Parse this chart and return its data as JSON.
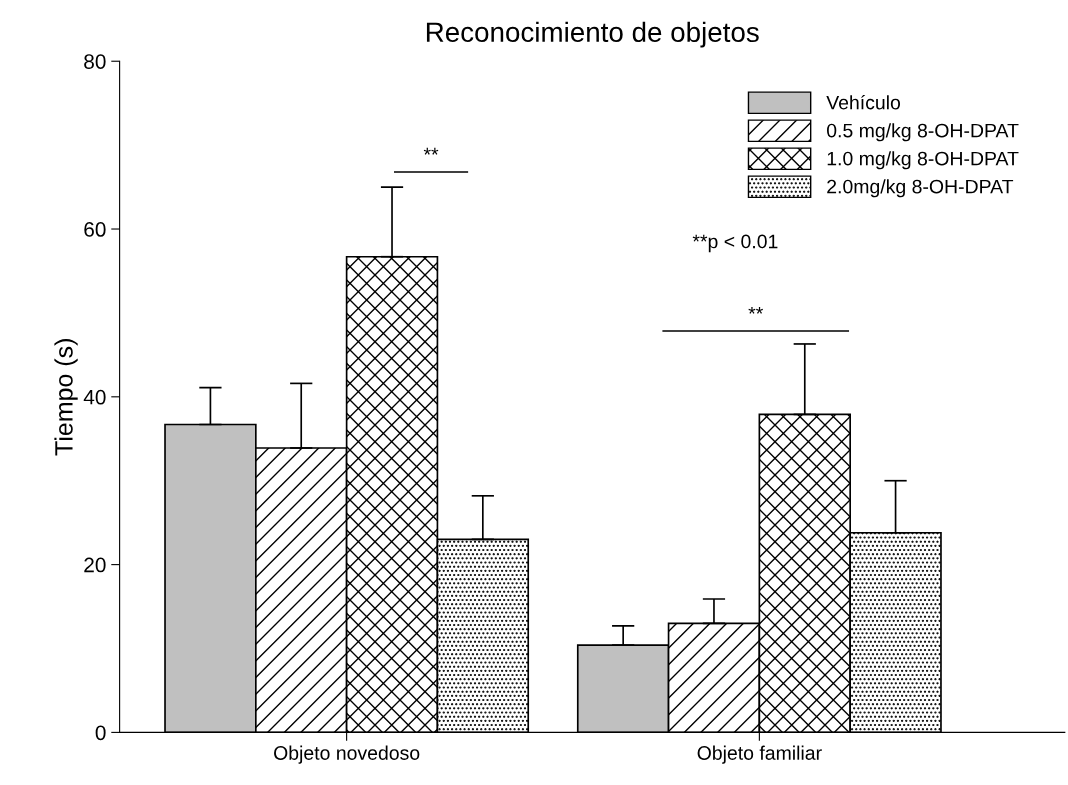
{
  "chart_data": {
    "type": "bar",
    "title": "Reconocimiento de objetos",
    "ylabel": "Tiempo (s)",
    "categories": [
      "Objeto novedoso",
      "Objeto familiar"
    ],
    "series": [
      {
        "name": "Vehículo",
        "color": "#c0c0c0",
        "values": [
          36.7,
          10.4
        ],
        "errors": [
          [
            36.7,
            41.1
          ],
          [
            10.4,
            12.7
          ]
        ]
      },
      {
        "name": "0.5 mg/kg 8-OH-DPAT",
        "color": "#000000",
        "values": [
          33.9,
          13.0
        ],
        "errors": [
          [
            33.9,
            41.6
          ],
          [
            13.0,
            15.9
          ]
        ]
      },
      {
        "name": "1.0 mg/kg 8-OH-DPAT",
        "color": "#000000",
        "values": [
          56.7,
          37.9
        ],
        "errors": [
          [
            56.7,
            65.0
          ],
          [
            37.9,
            46.3
          ]
        ]
      },
      {
        "name": "2.0mg/kg 8-OH-DPAT",
        "color": "#000000",
        "values": [
          23.0,
          23.8
        ],
        "errors": [
          [
            23.0,
            28.2
          ],
          [
            23.8,
            30.0
          ]
        ]
      }
    ],
    "ylim": [
      0,
      80
    ],
    "yticks": [
      0,
      20,
      40,
      60,
      80
    ],
    "grid": false,
    "legend": "top right",
    "annotations": [
      "**",
      "**",
      "**p < 0.01"
    ]
  }
}
